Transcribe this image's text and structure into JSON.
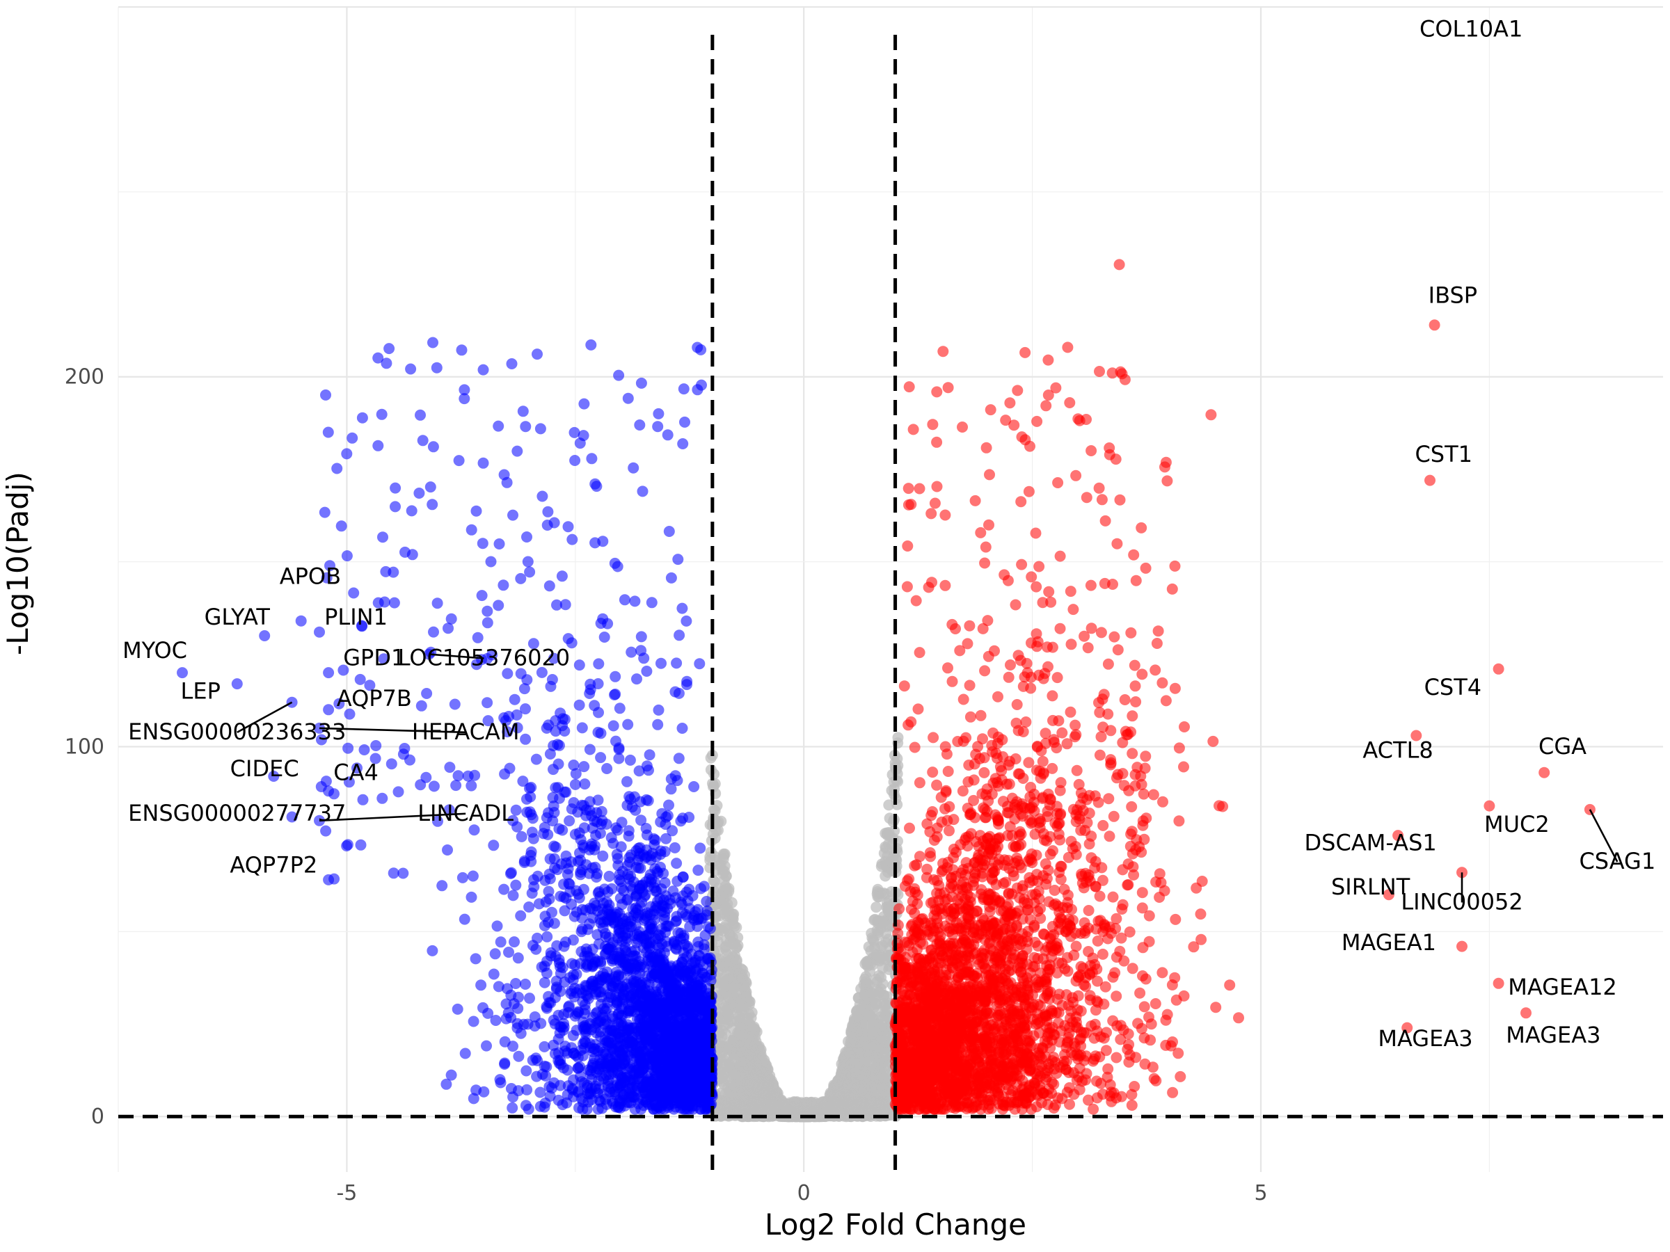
{
  "chart_data": {
    "type": "scatter",
    "title": "",
    "xlabel": "Log2 Fold Change",
    "ylabel": "-Log10(Padj)",
    "xlim": [
      -7.5,
      9.4
    ],
    "ylim": [
      -15,
      300
    ],
    "x_ticks": [
      -5,
      0,
      5
    ],
    "y_ticks": [
      0,
      100,
      200
    ],
    "grid": true,
    "legend": "none",
    "thresholds": {
      "log2fc": [
        -1,
        1
      ],
      "neg_log10_padj": 0
    },
    "colors": {
      "down": "#0000ff",
      "up": "#ff0000",
      "ns": "#bebebe",
      "threshold": "#000000"
    },
    "labeled_genes": [
      {
        "name": "COL10A1",
        "x": 6.1,
        "y": 305,
        "label_x": 7.3,
        "label_y": 292
      },
      {
        "name": "IBSP",
        "x": 6.9,
        "y": 214,
        "label_x": 7.1,
        "label_y": 220
      },
      {
        "name": "CST1",
        "x": 6.85,
        "y": 172,
        "label_x": 7.0,
        "label_y": 177
      },
      {
        "name": "CST4",
        "x": 7.6,
        "y": 121,
        "label_x": 7.1,
        "label_y": 114
      },
      {
        "name": "CGA",
        "x": 8.1,
        "y": 93,
        "label_x": 8.3,
        "label_y": 98
      },
      {
        "name": "ACTL8",
        "x": 6.7,
        "y": 103,
        "label_x": 6.5,
        "label_y": 97
      },
      {
        "name": "MUC2",
        "x": 7.5,
        "y": 84,
        "label_x": 7.8,
        "label_y": 77
      },
      {
        "name": "CSAG1",
        "x": 8.6,
        "y": 83,
        "label_x": 8.9,
        "label_y": 67,
        "leader": true
      },
      {
        "name": "DSCAM-AS1",
        "x": 6.5,
        "y": 76,
        "label_x": 6.2,
        "label_y": 72
      },
      {
        "name": "SIRLNT",
        "x": 6.4,
        "y": 60,
        "label_x": 6.2,
        "label_y": 60
      },
      {
        "name": "LINC00052",
        "x": 7.2,
        "y": 66,
        "label_x": 7.2,
        "label_y": 56,
        "leader": true
      },
      {
        "name": "MAGEA1",
        "x": 7.2,
        "y": 46,
        "label_x": 6.4,
        "label_y": 45
      },
      {
        "name": "MAGEA12",
        "x": 7.6,
        "y": 36,
        "label_x": 8.3,
        "label_y": 33
      },
      {
        "name": "MAGEA3",
        "x": 6.6,
        "y": 24,
        "label_x": 6.8,
        "label_y": 19
      },
      {
        "name": "MAGEA3",
        "x": 7.9,
        "y": 28,
        "label_x": 8.2,
        "label_y": 20
      },
      {
        "name": "APOB",
        "x": -5.5,
        "y": 134,
        "label_x": -5.4,
        "label_y": 144
      },
      {
        "name": "GLYAT",
        "x": -5.9,
        "y": 130,
        "label_x": -6.2,
        "label_y": 133
      },
      {
        "name": "PLIN1",
        "x": -5.3,
        "y": 131,
        "label_x": -4.9,
        "label_y": 133
      },
      {
        "name": "MYOC",
        "x": -6.8,
        "y": 120,
        "label_x": -7.1,
        "label_y": 124
      },
      {
        "name": "GPD1",
        "x": -5.2,
        "y": 120,
        "label_x": -4.7,
        "label_y": 122
      },
      {
        "name": "LOC105376020",
        "x": -4.1,
        "y": 125,
        "label_x": -3.5,
        "label_y": 122,
        "leader": true
      },
      {
        "name": "LEP",
        "x": -6.2,
        "y": 117,
        "label_x": -6.6,
        "label_y": 113
      },
      {
        "name": "AQP7B",
        "x": -5.2,
        "y": 110,
        "label_x": -4.7,
        "label_y": 111
      },
      {
        "name": "ENSG00000236333",
        "x": -5.6,
        "y": 112,
        "label_x": -6.2,
        "label_y": 102,
        "leader": true
      },
      {
        "name": "HEPACAM",
        "x": -5.3,
        "y": 105,
        "label_x": -3.7,
        "label_y": 102,
        "leader": true
      },
      {
        "name": "CIDEC",
        "x": -5.8,
        "y": 92,
        "label_x": -5.9,
        "label_y": 92
      },
      {
        "name": "CA4",
        "x": -5.2,
        "y": 88,
        "label_x": -4.9,
        "label_y": 91
      },
      {
        "name": "ENSG00000277737",
        "x": -5.6,
        "y": 81,
        "label_x": -6.2,
        "label_y": 80
      },
      {
        "name": "LINCADL",
        "x": -5.3,
        "y": 80,
        "label_x": -3.7,
        "label_y": 80,
        "leader": true
      },
      {
        "name": "AQP7P2",
        "x": -5.2,
        "y": 64,
        "label_x": -5.8,
        "label_y": 66
      }
    ]
  }
}
